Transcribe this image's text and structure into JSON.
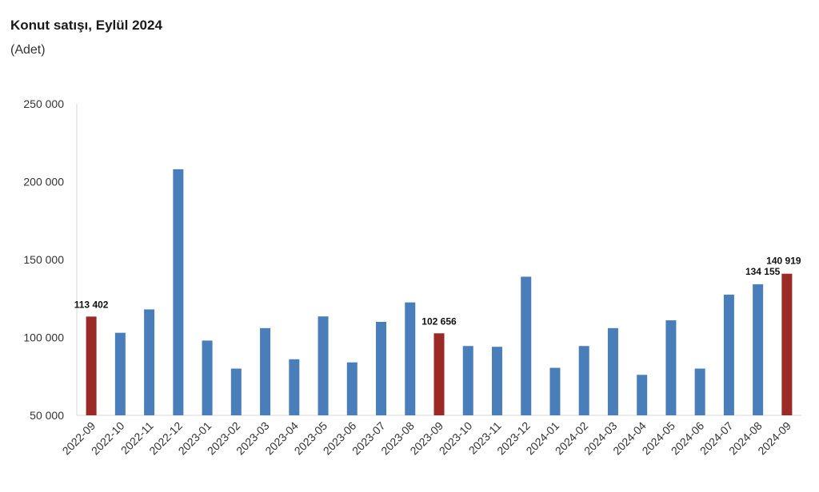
{
  "chart_data": {
    "type": "bar",
    "title": "Konut satışı, Eylül 2024",
    "subtitle": "(Adet)",
    "xlabel": "",
    "ylabel": "",
    "ylim": [
      50000,
      250000
    ],
    "yticks": [
      "50 000",
      "100 000",
      "150 000",
      "200 000",
      "250 000"
    ],
    "ytick_values": [
      50000,
      100000,
      150000,
      200000,
      250000
    ],
    "grid": false,
    "colors": {
      "default": "#4a7ebb",
      "highlight": "#9b2a26"
    },
    "categories": [
      "2022-09",
      "2022-10",
      "2022-11",
      "2022-12",
      "2023-01",
      "2023-02",
      "2023-03",
      "2023-04",
      "2023-05",
      "2023-06",
      "2023-07",
      "2023-08",
      "2023-09",
      "2023-10",
      "2023-11",
      "2023-12",
      "2024-01",
      "2024-02",
      "2024-03",
      "2024-04",
      "2024-05",
      "2024-06",
      "2024-07",
      "2024-08",
      "2024-09"
    ],
    "values": [
      113402,
      103000,
      118000,
      208000,
      98000,
      80000,
      106000,
      86000,
      113500,
      84000,
      110000,
      122500,
      102656,
      94500,
      94000,
      139000,
      80500,
      94500,
      106000,
      76000,
      111000,
      80000,
      127500,
      134155,
      140919
    ],
    "highlighted": [
      "2022-09",
      "2023-09",
      "2024-09"
    ],
    "data_labels": [
      {
        "category": "2022-09",
        "text": "113 402"
      },
      {
        "category": "2023-09",
        "text": "102 656"
      },
      {
        "category": "2024-08",
        "text": "134 155"
      },
      {
        "category": "2024-09",
        "text": "140 919"
      }
    ]
  }
}
